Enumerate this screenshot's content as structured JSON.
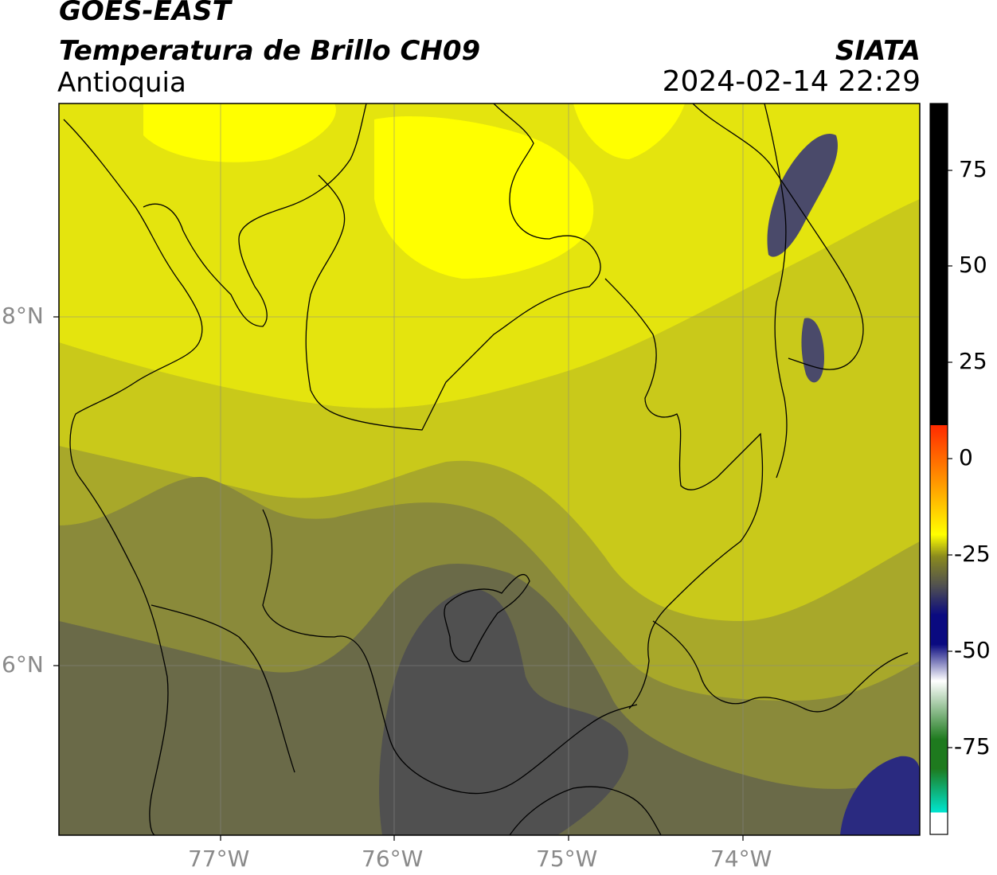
{
  "header": {
    "satellite": "GOES-EAST",
    "product": "Temperatura de Brillo CH09",
    "region": "Antioquia",
    "agency": "SIATA",
    "datetime": "2024-02-14 22:29"
  },
  "axes": {
    "lat_labels": [
      "8°N",
      "6°N"
    ],
    "lon_labels": [
      "77°W",
      "76°W",
      "75°W",
      "74°W"
    ]
  },
  "colorbar": {
    "tick_labels": [
      "75",
      "50",
      "25",
      "0",
      "-25",
      "-50",
      "-75"
    ],
    "colors": {
      "top": "#000000",
      "red": "#ff2a00",
      "orange": "#ff9900",
      "yellow": "#ffff00",
      "olive": "#8a8a1e",
      "gray": "#505050",
      "navy": "#0a0a80",
      "white": "#ffffff",
      "green": "#1e7a1e",
      "cyan": "#00e5d0"
    }
  },
  "colors": {
    "bright_yellow": "#ffff00",
    "light_yellow": "#e4e40e",
    "mid_yellow": "#c9c91a",
    "olive": "#a8a82a",
    "dark_olive": "#8a8a3a",
    "dark_gray_olive": "#6a6a48",
    "gray": "#505050",
    "blue_gray": "#4a4a6a",
    "navy": "#2a2a80",
    "boundary": "#000000",
    "grid": "#888888"
  }
}
